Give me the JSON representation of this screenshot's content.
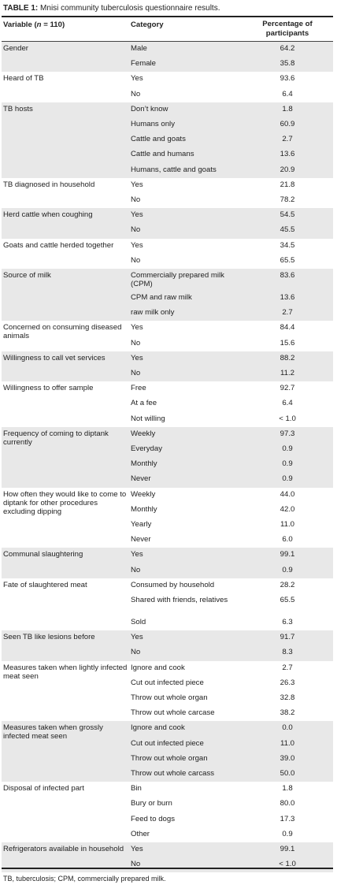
{
  "caption": {
    "label": "TABLE 1:",
    "text": "Mnisi community tuberculosis questionnaire results."
  },
  "headers": {
    "variable_prefix": "Variable (",
    "variable_n": "n",
    "variable_suffix": " = 110)",
    "category": "Category",
    "percentage_line1": "Percentage of",
    "percentage_line2": "participants"
  },
  "groups": [
    {
      "variable": "Gender",
      "rows": [
        [
          "Male",
          "64.2"
        ],
        [
          "Female",
          "35.8"
        ]
      ]
    },
    {
      "variable": "Heard of TB",
      "rows": [
        [
          "Yes",
          "93.6"
        ],
        [
          "No",
          "6.4"
        ]
      ]
    },
    {
      "variable": "TB hosts",
      "rows": [
        [
          "Don’t know",
          "1.8"
        ],
        [
          "Humans only",
          "60.9"
        ],
        [
          "Cattle and goats",
          "2.7"
        ],
        [
          "Cattle and humans",
          "13.6"
        ],
        [
          "Humans, cattle and goats",
          "20.9"
        ]
      ]
    },
    {
      "variable": "TB diagnosed in household",
      "rows": [
        [
          "Yes",
          "21.8"
        ],
        [
          "No",
          "78.2"
        ]
      ]
    },
    {
      "variable": "Herd cattle when coughing",
      "rows": [
        [
          "Yes",
          "54.5"
        ],
        [
          "No",
          "45.5"
        ]
      ]
    },
    {
      "variable": "Goats and cattle herded together",
      "rows": [
        [
          "Yes",
          "34.5"
        ],
        [
          "No",
          "65.5"
        ]
      ]
    },
    {
      "variable": "Source of milk",
      "rows": [
        [
          "Commercially prepared milk (CPM)",
          "83.6"
        ],
        [
          "CPM and raw milk",
          "13.6"
        ],
        [
          "raw milk only",
          "2.7"
        ]
      ]
    },
    {
      "variable": "Concerned on consuming diseased animals",
      "rows": [
        [
          "Yes",
          "84.4"
        ],
        [
          "No",
          "15.6"
        ]
      ]
    },
    {
      "variable": "Willingness to call vet services",
      "rows": [
        [
          "Yes",
          "88.2"
        ],
        [
          "No",
          "11.2"
        ]
      ]
    },
    {
      "variable": "Willingness to offer sample",
      "rows": [
        [
          "Free",
          "92.7"
        ],
        [
          "At a fee",
          "6.4"
        ],
        [
          "Not willing",
          "< 1.0"
        ]
      ]
    },
    {
      "variable": "Frequency of coming to diptank currently",
      "rows": [
        [
          "Weekly",
          "97.3"
        ],
        [
          "Everyday",
          "0.9"
        ],
        [
          "Monthly",
          "0.9"
        ],
        [
          "Never",
          "0.9"
        ]
      ]
    },
    {
      "variable": "How often they would like to come to diptank for other procedures excluding dipping",
      "rows": [
        [
          "Weekly",
          "44.0"
        ],
        [
          "Monthly",
          "42.0"
        ],
        [
          "Yearly",
          "11.0"
        ],
        [
          "Never",
          "6.0"
        ]
      ]
    },
    {
      "variable": "Communal slaughtering",
      "rows": [
        [
          "Yes",
          "99.1"
        ],
        [
          "No",
          "0.9"
        ]
      ]
    },
    {
      "variable": "Fate of slaughtered meat",
      "rows": [
        [
          "Consumed by household",
          "28.2"
        ],
        [
          "Shared with friends, relatives",
          "65.5"
        ],
        [
          "Sold",
          "6.3"
        ]
      ]
    },
    {
      "variable": "Seen TB like lesions before",
      "rows": [
        [
          "Yes",
          "91.7"
        ],
        [
          "No",
          "8.3"
        ]
      ]
    },
    {
      "variable": "Measures taken when lightly infected meat seen",
      "rows": [
        [
          "Ignore and cook",
          "2.7"
        ],
        [
          "Cut out infected piece",
          "26.3"
        ],
        [
          "Throw out whole organ",
          "32.8"
        ],
        [
          "Throw out whole carcase",
          "38.2"
        ]
      ]
    },
    {
      "variable": "Measures taken when grossly infected meat seen",
      "rows": [
        [
          "Ignore and cook",
          "0.0"
        ],
        [
          "Cut out infected piece",
          "11.0"
        ],
        [
          "Throw out whole organ",
          "39.0"
        ],
        [
          "Throw out whole carcass",
          "50.0"
        ]
      ]
    },
    {
      "variable": "Disposal of infected part",
      "rows": [
        [
          "Bin",
          "1.8"
        ],
        [
          "Bury or burn",
          "80.0"
        ],
        [
          "Feed to dogs",
          "17.3"
        ],
        [
          "Other",
          "0.9"
        ]
      ]
    },
    {
      "variable": "Refrigerators available in household",
      "rows": [
        [
          "Yes",
          "99.1"
        ],
        [
          "No",
          "< 1.0"
        ]
      ]
    }
  ],
  "footnote": "TB, tuberculosis; CPM, commercially prepared milk."
}
